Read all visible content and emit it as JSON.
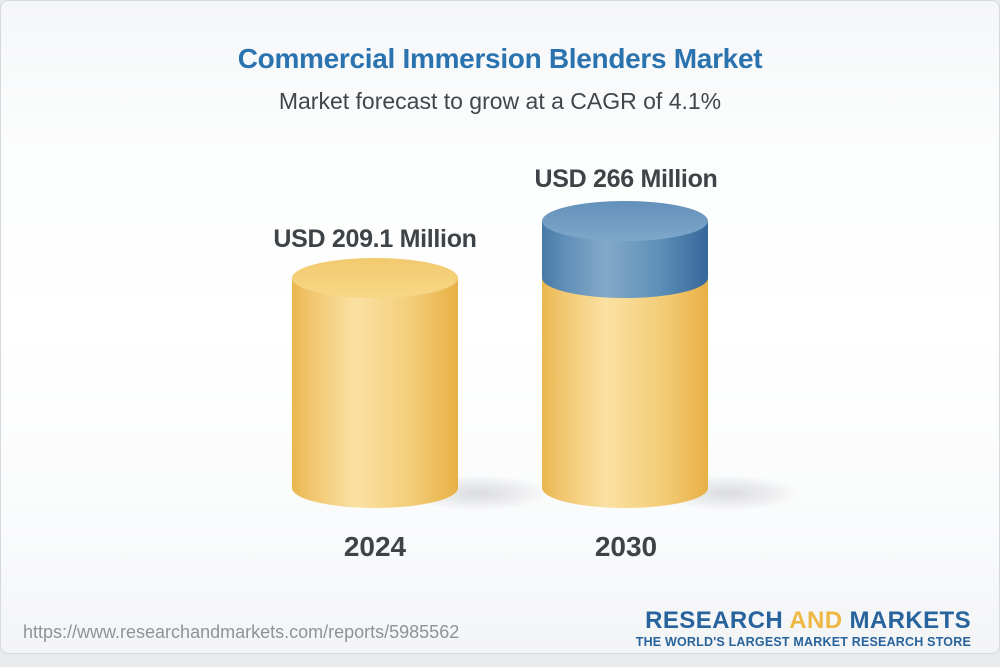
{
  "header": {
    "title": "Commercial Immersion Blenders Market",
    "subtitle": "Market forecast to grow at a CAGR of 4.1%"
  },
  "chart_data": {
    "type": "bar",
    "variant": "3d-cylinder",
    "title": "Commercial Immersion Blenders Market",
    "subtitle": "Market forecast to grow at a CAGR of 4.1%",
    "cagr_percent": 4.1,
    "unit": "USD Million",
    "categories": [
      "2024",
      "2030"
    ],
    "values": [
      209.1,
      266
    ],
    "bar_labels": [
      "USD 209.1 Million",
      "USD 266 Million"
    ],
    "legend": "none",
    "grid": false,
    "bars": [
      {
        "category": "2024",
        "label": "USD 209.1 Million",
        "total": 209.1,
        "segments": [
          {
            "value": 209.1,
            "color": "gold"
          }
        ]
      },
      {
        "category": "2030",
        "label": "USD 266 Million",
        "total": 266,
        "segments": [
          {
            "value": 209.1,
            "color": "gold"
          },
          {
            "value": 56.9,
            "color": "blue"
          }
        ]
      }
    ]
  },
  "footer": {
    "url": "https://www.researchandmarkets.com/reports/5985562",
    "logo": {
      "part1": "RESEARCH",
      "part2": "AND",
      "part3": "MARKETS",
      "tagline": "THE WORLD'S LARGEST MARKET RESEARCH STORE"
    }
  },
  "colors": {
    "title_blue": "#2a73af",
    "text_dark": "#3e4347",
    "bar_gold_mid": "#f9e0a1",
    "bar_gold_edge": "#eab64e",
    "bar_blue_mid": "#83a9c9",
    "bar_blue_edge": "#36679a",
    "logo_blue": "#27639c",
    "logo_gold": "#efb844",
    "url_gray": "#8f9397"
  }
}
